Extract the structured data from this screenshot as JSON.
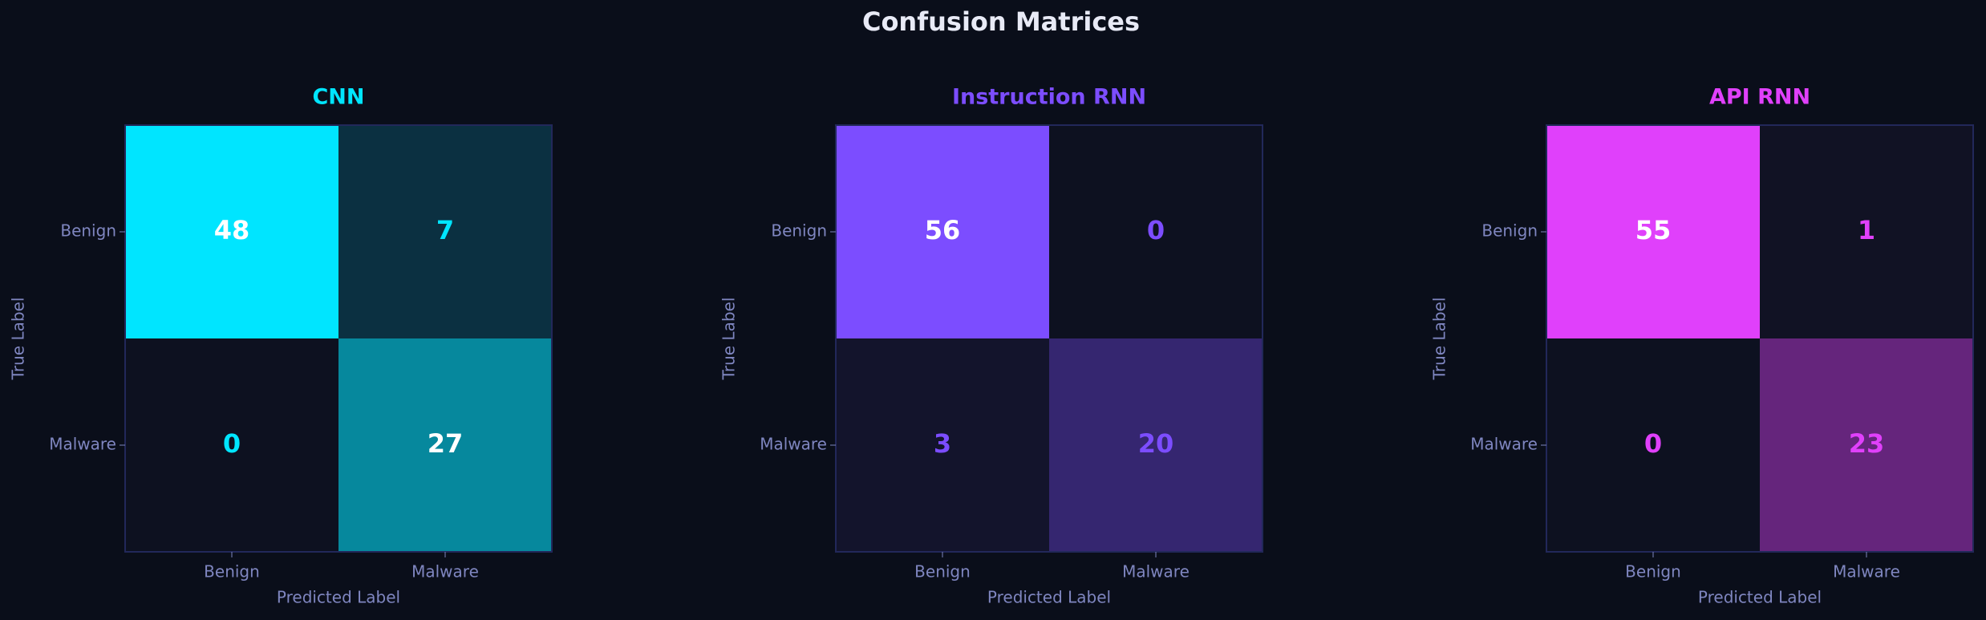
{
  "title": "Confusion Matrices",
  "chart_data": [
    {
      "type": "heatmap",
      "title": "CNN",
      "color": "#00e5ff",
      "x_categories": [
        "Benign",
        "Malware"
      ],
      "y_categories": [
        "Benign",
        "Malware"
      ],
      "values": [
        [
          48,
          7
        ],
        [
          0,
          27
        ]
      ],
      "x_label": "Predicted Label",
      "y_label": "True Label"
    },
    {
      "type": "heatmap",
      "title": "Instruction RNN",
      "color": "#7c4dff",
      "x_categories": [
        "Benign",
        "Malware"
      ],
      "y_categories": [
        "Benign",
        "Malware"
      ],
      "values": [
        [
          56,
          0
        ],
        [
          3,
          20
        ]
      ],
      "x_label": "Predicted Label",
      "y_label": "True Label"
    },
    {
      "type": "heatmap",
      "title": "API RNN",
      "color": "#e040fb",
      "x_categories": [
        "Benign",
        "Malware"
      ],
      "y_categories": [
        "Benign",
        "Malware"
      ],
      "values": [
        [
          55,
          1
        ],
        [
          0,
          23
        ]
      ],
      "x_label": "Predicted Label",
      "y_label": "True Label"
    }
  ]
}
